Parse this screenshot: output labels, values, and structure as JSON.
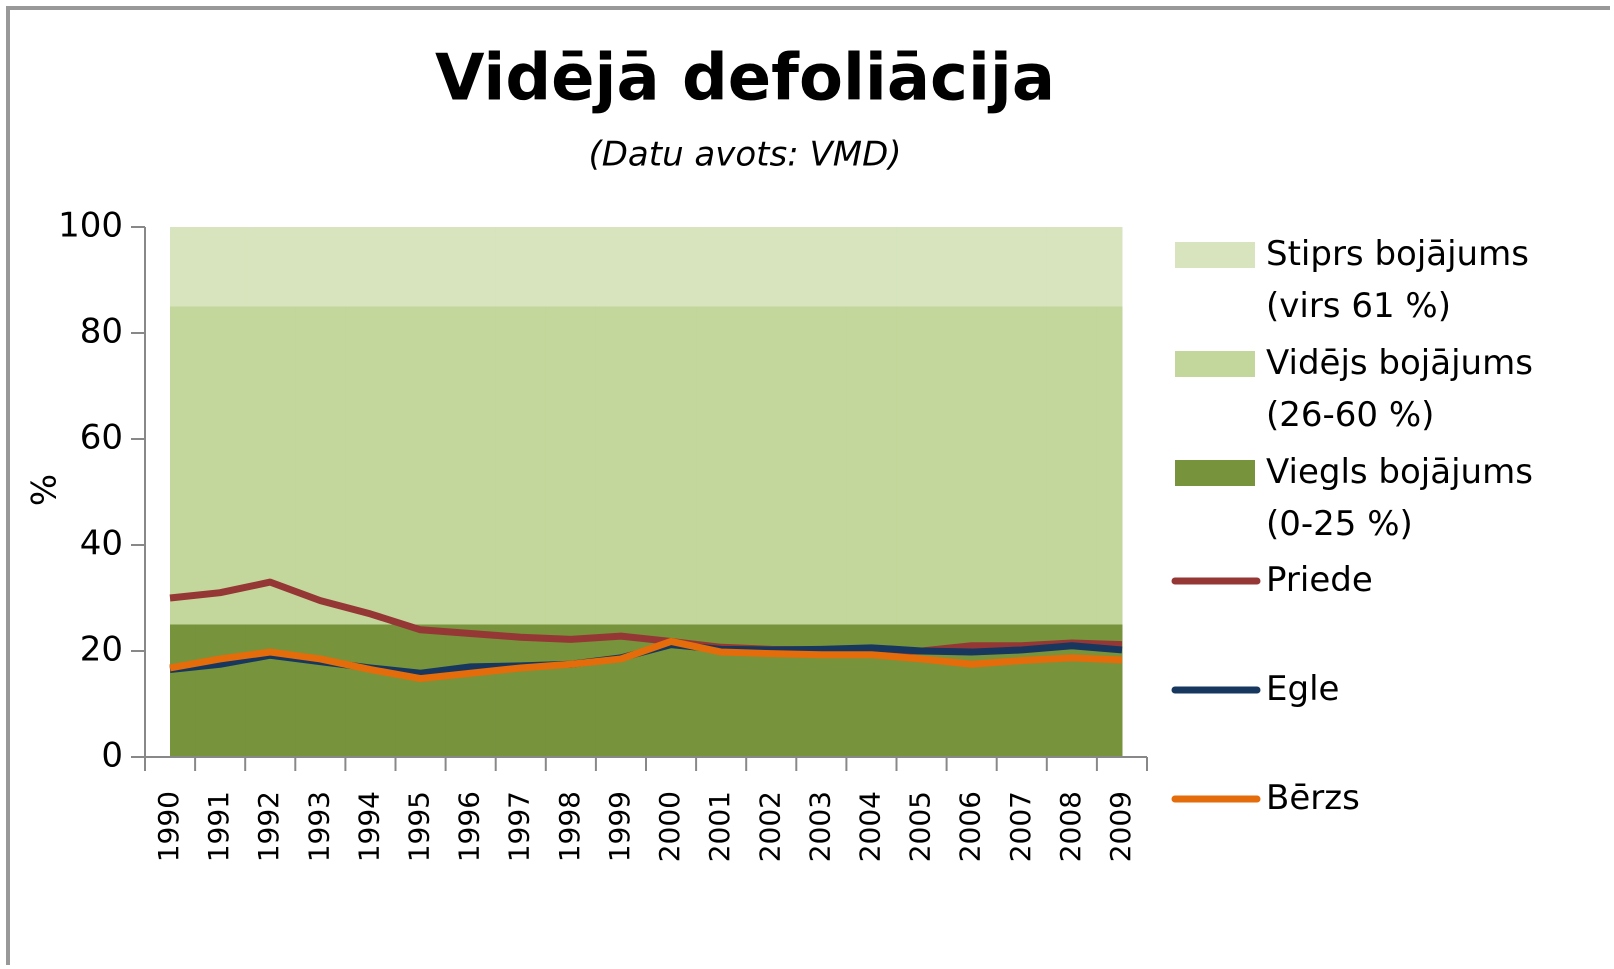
{
  "chart_data": {
    "type": "area_line",
    "title": "Vidējā defoliācija",
    "subtitle": "(Datu avots: VMD)",
    "y_label": "%",
    "categories": [
      "1990",
      "1991",
      "1992",
      "1993",
      "1994",
      "1995",
      "1996",
      "1997",
      "1998",
      "1999",
      "2000",
      "2001",
      "2002",
      "2003",
      "2004",
      "2005",
      "2006",
      "2007",
      "2008",
      "2009"
    ],
    "ylim": [
      0,
      100
    ],
    "yticks": [
      0,
      20,
      40,
      60,
      80,
      100
    ],
    "areas": [
      {
        "name": "Viegls bojājums\n(0-25 %)",
        "color": "#77933c",
        "values": [
          25,
          25,
          25,
          25,
          25,
          25,
          25,
          25,
          25,
          25,
          25,
          25,
          25,
          25,
          25,
          25,
          25,
          25,
          25,
          25
        ]
      },
      {
        "name": "Vidējs bojājums\n(26-60 %)",
        "color": "#c3d69b",
        "values": [
          60,
          60,
          60,
          60,
          60,
          60,
          60,
          60,
          60,
          60,
          60,
          60,
          60,
          60,
          60,
          60,
          60,
          60,
          60,
          60
        ]
      },
      {
        "name": "Stiprs bojājums\n(virs 61 %)",
        "color": "#d7e4bd",
        "values": [
          15,
          15,
          15,
          15,
          15,
          15,
          15,
          15,
          15,
          15,
          15,
          15,
          15,
          15,
          15,
          15,
          15,
          15,
          15,
          15
        ]
      }
    ],
    "series": [
      {
        "name": "Priede",
        "color": "#953735",
        "values": [
          30,
          31,
          33,
          29.5,
          27,
          24,
          23.3,
          22.6,
          22.2,
          22.8,
          21.8,
          20.7,
          20.3,
          20.2,
          20,
          20,
          21,
          21,
          21.5,
          21.2
        ]
      },
      {
        "name": "Egle",
        "color": "#17375e",
        "values": [
          16.5,
          17.5,
          19.2,
          18,
          16.8,
          15.8,
          17,
          17.2,
          17.5,
          18.7,
          21.2,
          20.3,
          20.2,
          20.3,
          20.6,
          20,
          19.8,
          20.2,
          21,
          20.2
        ]
      },
      {
        "name": "Bērzs",
        "color": "#e46c0a",
        "values": [
          16.8,
          18.5,
          19.8,
          18.5,
          16.5,
          14.8,
          15.8,
          16.8,
          17.5,
          18.5,
          21.8,
          19.8,
          19.5,
          19.3,
          19.3,
          18.5,
          17.5,
          18.2,
          18.7,
          18.3
        ]
      }
    ]
  }
}
